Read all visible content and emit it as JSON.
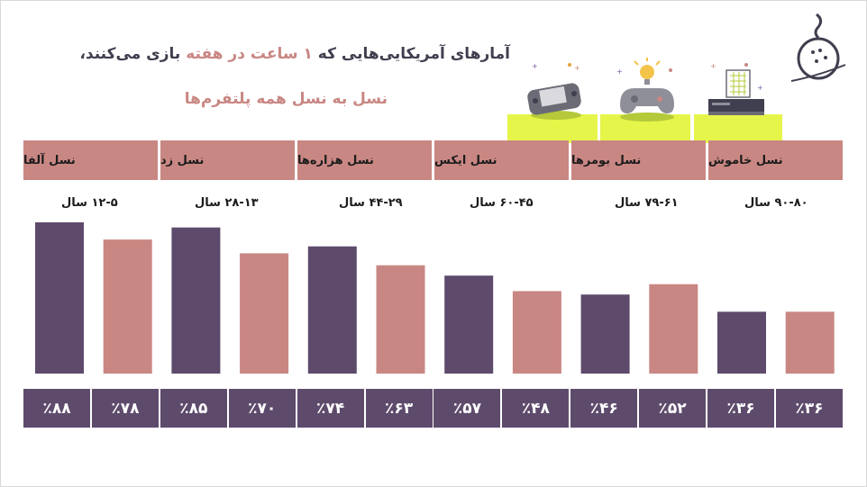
{
  "title": {
    "part1": "آمارهای آمریکایی‌هایی که ",
    "highlight1": "۱ ساعت در هفته",
    "part2": " بازی می‌کنند،"
  },
  "subtitle": "نسل به نسل همه پلتفرم‌ها",
  "colors": {
    "dark": "#5e4b6c",
    "light": "#c98783",
    "accent": "#e6f54a"
  },
  "chart_data": {
    "type": "bar",
    "categories": [
      "نسل آلفا",
      "نسل زد",
      "نسل هزاره‌ها",
      "نسل ایکس",
      "نسل بومرها",
      "نسل خاموش"
    ],
    "age_ranges": [
      "۱۲-۵ سال",
      "۲۸-۱۳ سال",
      "۴۴-۲۹ سال",
      "۶۰-۴۵ سال",
      "۷۹-۶۱ سال",
      "۹۰-۸۰ سال"
    ],
    "bars": [
      {
        "value": 88,
        "label": "٪۸۸",
        "tone": "dark"
      },
      {
        "value": 78,
        "label": "٪۷۸",
        "tone": "light"
      },
      {
        "value": 85,
        "label": "٪۸۵",
        "tone": "dark"
      },
      {
        "value": 70,
        "label": "٪۷۰",
        "tone": "light"
      },
      {
        "value": 74,
        "label": "٪۷۴",
        "tone": "dark"
      },
      {
        "value": 63,
        "label": "٪۶۳",
        "tone": "light"
      },
      {
        "value": 57,
        "label": "٪۵۷",
        "tone": "dark"
      },
      {
        "value": 48,
        "label": "٪۴۸",
        "tone": "light"
      },
      {
        "value": 46,
        "label": "٪۴۶",
        "tone": "dark"
      },
      {
        "value": 52,
        "label": "٪۵۲",
        "tone": "light"
      },
      {
        "value": 36,
        "label": "٪۳۶",
        "tone": "dark"
      },
      {
        "value": 36,
        "label": "٪۳۶",
        "tone": "light"
      }
    ],
    "ylim": [
      0,
      100
    ],
    "grid": false
  },
  "icons": [
    "logo-icon",
    "handheld-console-icon",
    "gamepad-idea-icon",
    "console-calendar-icon"
  ]
}
